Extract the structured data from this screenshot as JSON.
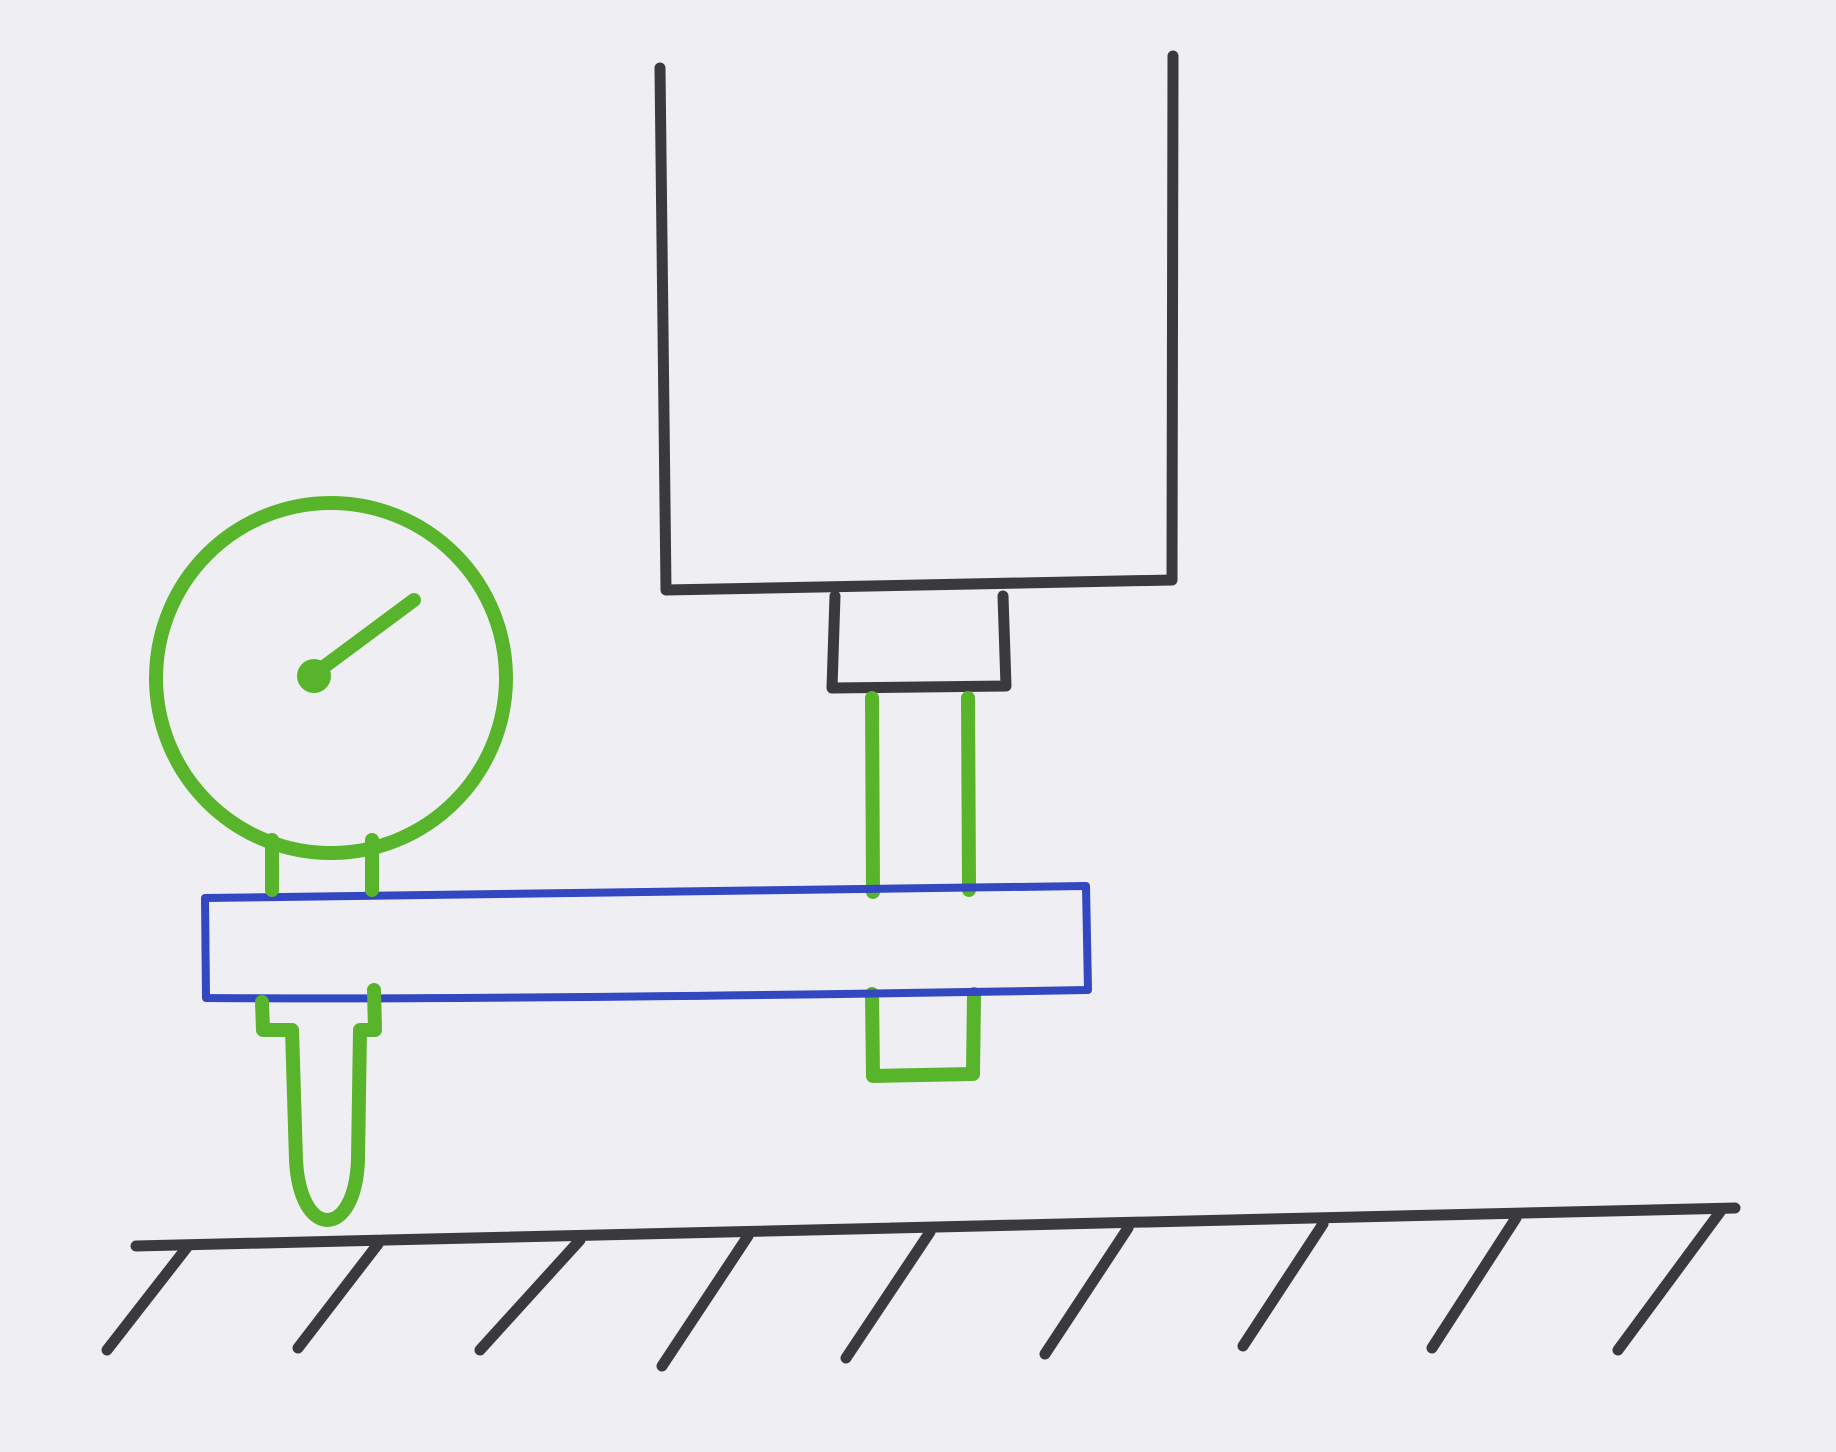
{
  "drawing": {
    "style": "hand-drawn marker sketch on paper",
    "paper_color": "#efeff3",
    "ink_colors": {
      "black": "#3a3a3c",
      "green": "#58b42a",
      "blue": "#3347c0"
    },
    "parts": [
      {
        "name": "spindle-housing",
        "color": "black"
      },
      {
        "name": "tool-holder",
        "color": "black"
      },
      {
        "name": "clamped-shaft",
        "color": "green"
      },
      {
        "name": "dial-gauge",
        "color": "green"
      },
      {
        "name": "gauge-arm",
        "color": "blue"
      },
      {
        "name": "machine-table",
        "color": "black",
        "hatch_marks": 9
      }
    ]
  }
}
